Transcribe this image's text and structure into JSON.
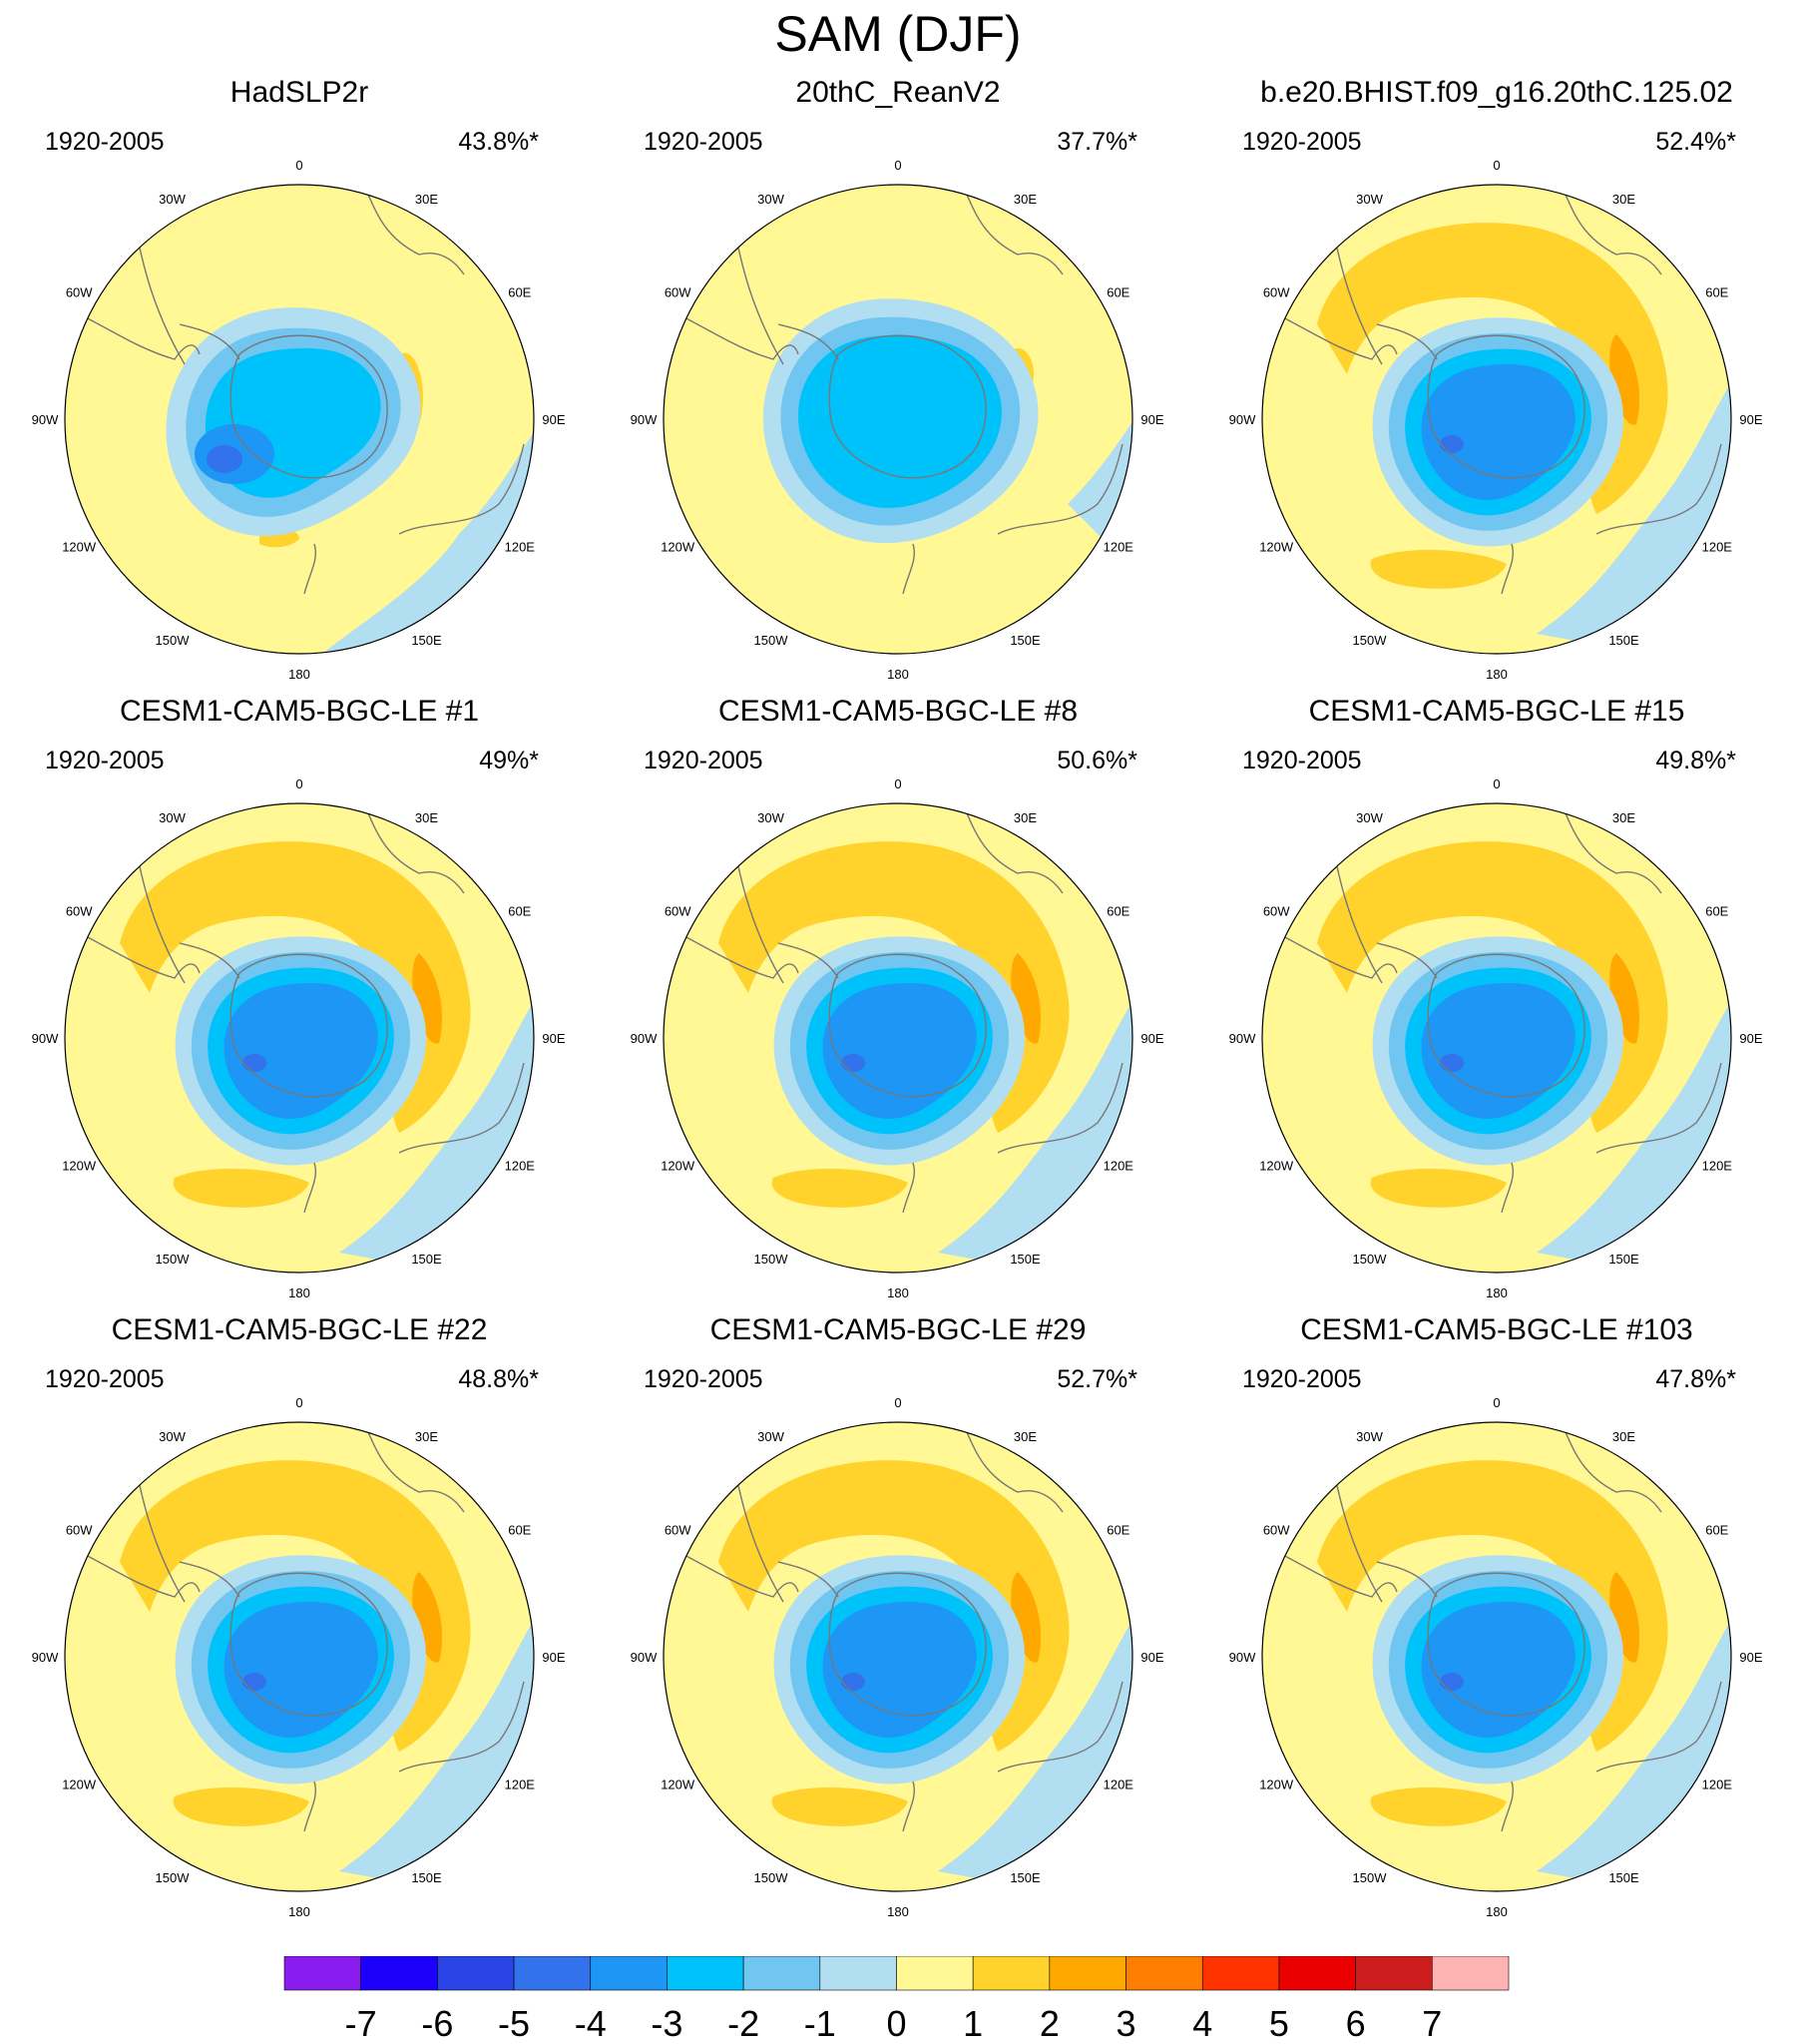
{
  "title": "SAM (DJF)",
  "coastline_color": "#777777",
  "lon_labels": [
    "0",
    "30E",
    "60E",
    "90E",
    "120E",
    "150E",
    "180",
    "150W",
    "120W",
    "90W",
    "60W",
    "30W"
  ],
  "panels": [
    {
      "title": "HadSLP2r",
      "years": "1920-2005",
      "pct": "43.8%*",
      "pattern": "obs1"
    },
    {
      "title": "20thC_ReanV2",
      "years": "1920-2005",
      "pct": "37.7%*",
      "pattern": "obs2"
    },
    {
      "title": "b.e20.BHIST.f09_g16.20thC.125.02",
      "years": "1920-2005",
      "pct": "52.4%*",
      "pattern": "model"
    },
    {
      "title": "CESM1-CAM5-BGC-LE #1",
      "years": "1920-2005",
      "pct": "49%*",
      "pattern": "model"
    },
    {
      "title": "CESM1-CAM5-BGC-LE #8",
      "years": "1920-2005",
      "pct": "50.6%*",
      "pattern": "model"
    },
    {
      "title": "CESM1-CAM5-BGC-LE #15",
      "years": "1920-2005",
      "pct": "49.8%*",
      "pattern": "model"
    },
    {
      "title": "CESM1-CAM5-BGC-LE #22",
      "years": "1920-2005",
      "pct": "48.8%*",
      "pattern": "model"
    },
    {
      "title": "CESM1-CAM5-BGC-LE #29",
      "years": "1920-2005",
      "pct": "52.7%*",
      "pattern": "model"
    },
    {
      "title": "CESM1-CAM5-BGC-LE #103",
      "years": "1920-2005",
      "pct": "47.8%*",
      "pattern": "model"
    }
  ],
  "colorbar": {
    "colors": [
      "#8a1cf0",
      "#1c00fb",
      "#2a44e6",
      "#3272ea",
      "#1e96f5",
      "#00c2fa",
      "#70c6f0",
      "#b2def2",
      "#fff894",
      "#ffd22c",
      "#ffa900",
      "#ff7d00",
      "#ff3300",
      "#ea0000",
      "#cc1c1c",
      "#ffb4b4"
    ],
    "labels": [
      "-7",
      "-6",
      "-5",
      "-4",
      "-3",
      "-2",
      "-1",
      "0",
      "1",
      "2",
      "3",
      "4",
      "5",
      "6",
      "7"
    ]
  }
}
